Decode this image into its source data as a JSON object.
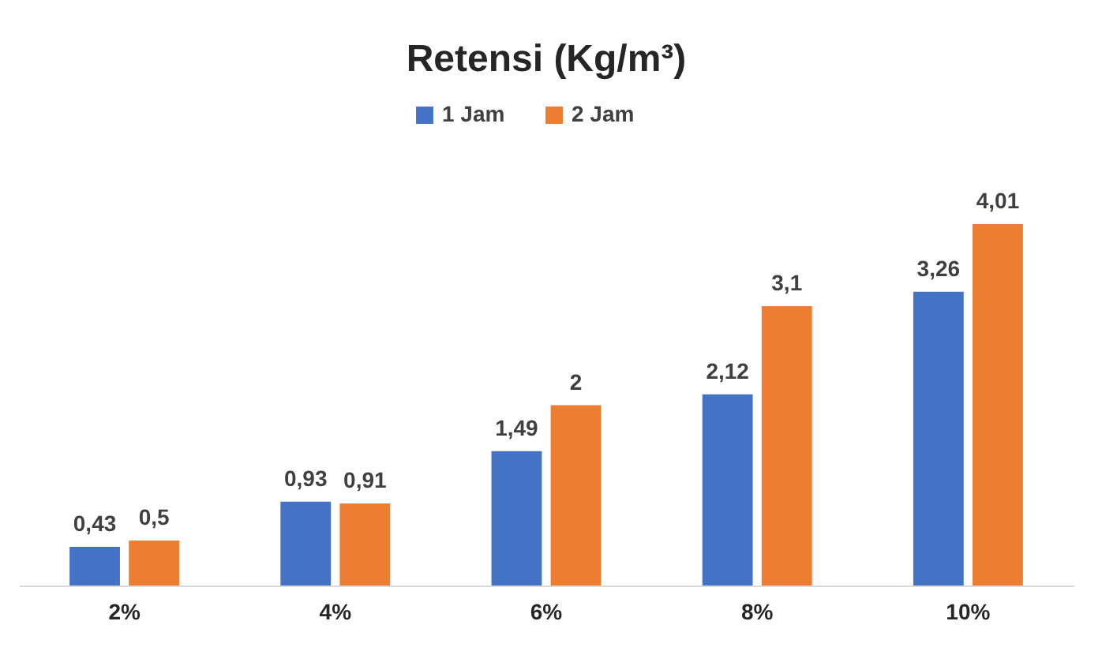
{
  "chart_data": {
    "type": "bar",
    "title": "Retensi (Kg/m³)",
    "categories": [
      "2%",
      "4%",
      "6%",
      "8%",
      "10%"
    ],
    "series": [
      {
        "name": "1 Jam",
        "color": "#4472c4",
        "values": [
          0.43,
          0.93,
          1.49,
          2.12,
          3.26
        ],
        "value_labels": [
          "0,43",
          "0,93",
          "1,49",
          "2,12",
          "3,26"
        ]
      },
      {
        "name": "2 Jam",
        "color": "#ed7d31",
        "values": [
          0.5,
          0.91,
          2,
          3.1,
          4.01
        ],
        "value_labels": [
          "0,5",
          "0,91",
          "2",
          "3,1",
          "4,01"
        ]
      }
    ],
    "legend": "top"
  }
}
